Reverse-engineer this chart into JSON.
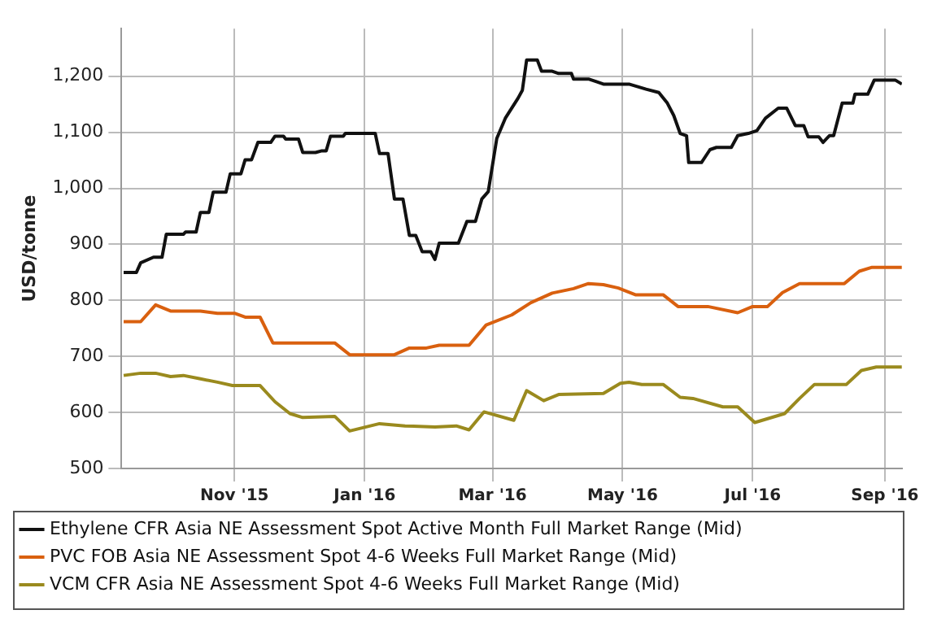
{
  "chart_data": {
    "type": "line",
    "ylabel": "USD/tonne",
    "xlim": [
      "2015-09-09",
      "2016-09-09"
    ],
    "ylim": [
      500,
      1285
    ],
    "xticks": [
      {
        "value": "2015-11-01",
        "label": "Nov '15"
      },
      {
        "value": "2016-01-01",
        "label": "Jan '16"
      },
      {
        "value": "2016-03-01",
        "label": "Mar '16"
      },
      {
        "value": "2016-05-01",
        "label": "May '16"
      },
      {
        "value": "2016-07-01",
        "label": "Jul '16"
      },
      {
        "value": "2016-09-01",
        "label": "Sep '16"
      }
    ],
    "yticks": [
      500,
      600,
      700,
      800,
      900,
      {
        "value": 1000,
        "label": "1,000"
      },
      {
        "value": 1100,
        "label": "1,100"
      },
      {
        "value": 1200,
        "label": "1,200"
      }
    ],
    "grid": true,
    "legend": "bottom",
    "marker": "none",
    "line_style": "solid",
    "series": [
      {
        "name": "Ethylene CFR Asia NE Assessment Spot Active Month Full Market Range (Mid)",
        "color": "#111111",
        "x": [
          "2015-09-10",
          "2015-09-16",
          "2015-09-18",
          "2015-09-24",
          "2015-09-28",
          "2015-09-30",
          "2015-10-08",
          "2015-10-09",
          "2015-10-14",
          "2015-10-16",
          "2015-10-20",
          "2015-10-22",
          "2015-10-28",
          "2015-10-30",
          "2015-11-04",
          "2015-11-06",
          "2015-11-09",
          "2015-11-12",
          "2015-11-18",
          "2015-11-20",
          "2015-11-24",
          "2015-11-25",
          "2015-12-01",
          "2015-12-03",
          "2015-12-09",
          "2015-12-12",
          "2015-12-14",
          "2015-12-16",
          "2015-12-22",
          "2015-12-23",
          "2016-01-06",
          "2016-01-08",
          "2016-01-12",
          "2016-01-15",
          "2016-01-19",
          "2016-01-22",
          "2016-01-25",
          "2016-01-28",
          "2016-02-01",
          "2016-02-03",
          "2016-02-05",
          "2016-02-14",
          "2016-02-18",
          "2016-02-22",
          "2016-02-25",
          "2016-02-28",
          "2016-03-03",
          "2016-03-07",
          "2016-03-13",
          "2016-03-15",
          "2016-03-17",
          "2016-03-22",
          "2016-03-24",
          "2016-03-29",
          "2016-04-01",
          "2016-04-07",
          "2016-04-08",
          "2016-04-15",
          "2016-04-19",
          "2016-04-22",
          "2016-05-04",
          "2016-05-12",
          "2016-05-18",
          "2016-05-22",
          "2016-05-25",
          "2016-05-28",
          "2016-05-31",
          "2016-06-01",
          "2016-06-07",
          "2016-06-11",
          "2016-06-14",
          "2016-06-21",
          "2016-06-24",
          "2016-06-29",
          "2016-07-03",
          "2016-07-07",
          "2016-07-13",
          "2016-07-17",
          "2016-07-21",
          "2016-07-25",
          "2016-07-27",
          "2016-08-01",
          "2016-08-03",
          "2016-08-06",
          "2016-08-08",
          "2016-08-12",
          "2016-08-17",
          "2016-08-18",
          "2016-08-24",
          "2016-08-27",
          "2016-09-06",
          "2016-09-09"
        ],
        "values": [
          850,
          850,
          867,
          877,
          877,
          918,
          918,
          922,
          922,
          957,
          957,
          993,
          993,
          1026,
          1026,
          1051,
          1051,
          1082,
          1082,
          1093,
          1093,
          1088,
          1088,
          1064,
          1064,
          1067,
          1067,
          1093,
          1093,
          1098,
          1098,
          1062,
          1062,
          981,
          981,
          916,
          916,
          887,
          887,
          873,
          902,
          902,
          941,
          941,
          981,
          994,
          1089,
          1125,
          1161,
          1175,
          1229,
          1229,
          1209,
          1209,
          1205,
          1205,
          1195,
          1195,
          1190,
          1186,
          1186,
          1177,
          1171,
          1152,
          1130,
          1098,
          1094,
          1046,
          1046,
          1069,
          1073,
          1073,
          1094,
          1098,
          1103,
          1125,
          1143,
          1143,
          1112,
          1112,
          1092,
          1092,
          1082,
          1094,
          1094,
          1152,
          1152,
          1168,
          1168,
          1193,
          1193,
          1186
        ]
      },
      {
        "name": "PVC FOB Asia NE Assessment Spot 4-6 Weeks Full Market Range (Mid)",
        "color": "#d9600f",
        "x": [
          "2015-09-10",
          "2015-09-18",
          "2015-09-25",
          "2015-10-02",
          "2015-10-16",
          "2015-10-24",
          "2015-11-01",
          "2015-11-06",
          "2015-11-13",
          "2015-11-19",
          "2015-12-18",
          "2015-12-25",
          "2016-01-15",
          "2016-01-22",
          "2016-01-30",
          "2016-02-05",
          "2016-02-19",
          "2016-02-27",
          "2016-03-10",
          "2016-03-19",
          "2016-03-29",
          "2016-04-08",
          "2016-04-15",
          "2016-04-22",
          "2016-04-29",
          "2016-05-07",
          "2016-05-20",
          "2016-05-27",
          "2016-06-10",
          "2016-06-24",
          "2016-07-01",
          "2016-07-08",
          "2016-07-15",
          "2016-07-23",
          "2016-08-13",
          "2016-08-20",
          "2016-08-26",
          "2016-09-09"
        ],
        "values": [
          762,
          762,
          792,
          781,
          781,
          777,
          777,
          770,
          770,
          724,
          724,
          703,
          703,
          715,
          715,
          720,
          720,
          756,
          774,
          796,
          813,
          821,
          830,
          828,
          822,
          810,
          810,
          789,
          789,
          778,
          789,
          789,
          814,
          830,
          830,
          852,
          859,
          859
        ]
      },
      {
        "name": "VCM CFR Asia NE Assessment Spot 4-6 Weeks Full Market Range (Mid)",
        "color": "#9a8a1e",
        "x": [
          "2015-09-10",
          "2015-09-18",
          "2015-09-25",
          "2015-10-02",
          "2015-10-08",
          "2015-10-16",
          "2015-10-24",
          "2015-10-31",
          "2015-11-13",
          "2015-11-20",
          "2015-11-27",
          "2015-12-03",
          "2015-12-18",
          "2015-12-25",
          "2016-01-08",
          "2016-01-20",
          "2016-02-03",
          "2016-02-13",
          "2016-02-19",
          "2016-02-26",
          "2016-03-11",
          "2016-03-17",
          "2016-03-25",
          "2016-04-01",
          "2016-04-22",
          "2016-04-30",
          "2016-05-04",
          "2016-05-10",
          "2016-05-20",
          "2016-05-28",
          "2016-06-03",
          "2016-06-17",
          "2016-06-24",
          "2016-07-02",
          "2016-07-16",
          "2016-07-23",
          "2016-07-30",
          "2016-08-14",
          "2016-08-21",
          "2016-08-28",
          "2016-09-09"
        ],
        "values": [
          666,
          670,
          670,
          664,
          666,
          660,
          654,
          648,
          648,
          619,
          598,
          591,
          593,
          567,
          580,
          576,
          574,
          576,
          569,
          601,
          586,
          639,
          621,
          632,
          634,
          652,
          654,
          650,
          650,
          627,
          625,
          610,
          610,
          582,
          598,
          625,
          650,
          650,
          675,
          681,
          681
        ]
      }
    ]
  }
}
